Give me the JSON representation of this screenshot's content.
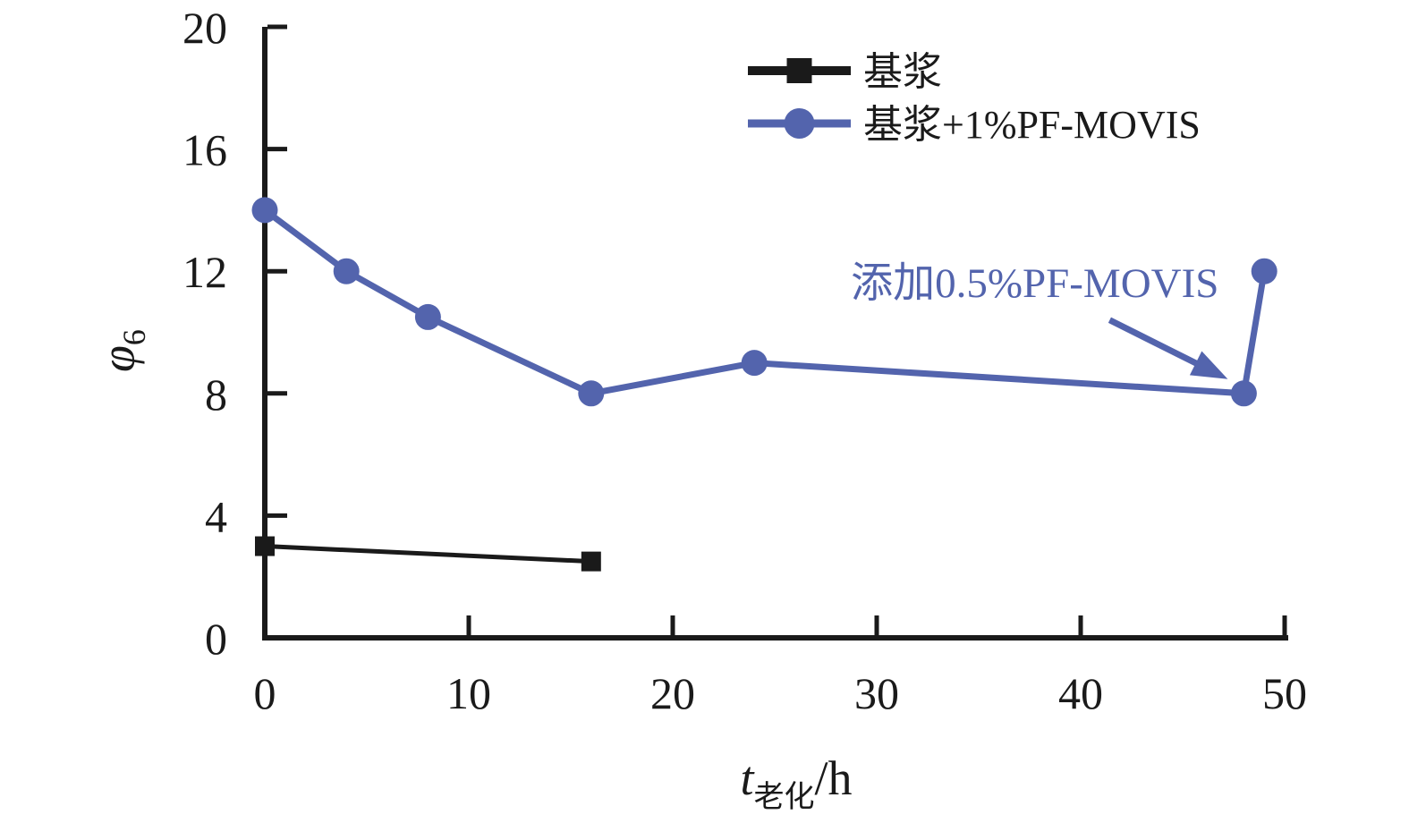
{
  "figure": {
    "background": "#ffffff",
    "ink_color": "#1a1a1a"
  },
  "chart_data": {
    "type": "line",
    "title": "",
    "xlabel_base": "t",
    "xlabel_subscript": "老化",
    "xlabel_unit": "/h",
    "ylabel_base": "φ",
    "ylabel_subscript": "6",
    "xlim": [
      0,
      50
    ],
    "ylim": [
      0,
      20
    ],
    "x_ticks": [
      0,
      10,
      20,
      30,
      40,
      50
    ],
    "y_ticks": [
      0,
      4,
      8,
      12,
      16,
      20
    ],
    "grid": false,
    "legend_position": "top-right-inside",
    "series": [
      {
        "name": "基浆",
        "color": "#1a1a1a",
        "marker": "square",
        "line_width": 5,
        "x": [
          0,
          16
        ],
        "y": [
          3,
          2.5
        ]
      },
      {
        "name": "基浆+1%PF-MOVIS",
        "color": "#5364ad",
        "marker": "circle",
        "line_width": 7,
        "x": [
          0,
          4,
          8,
          16,
          24,
          48,
          49
        ],
        "y": [
          14,
          12,
          10.5,
          8,
          9,
          8,
          12
        ]
      }
    ],
    "annotation": {
      "text": "添加0.5%PF-MOVIS",
      "color": "#5364ad",
      "arrow_target_x": 48,
      "arrow_target_y": 8
    }
  }
}
